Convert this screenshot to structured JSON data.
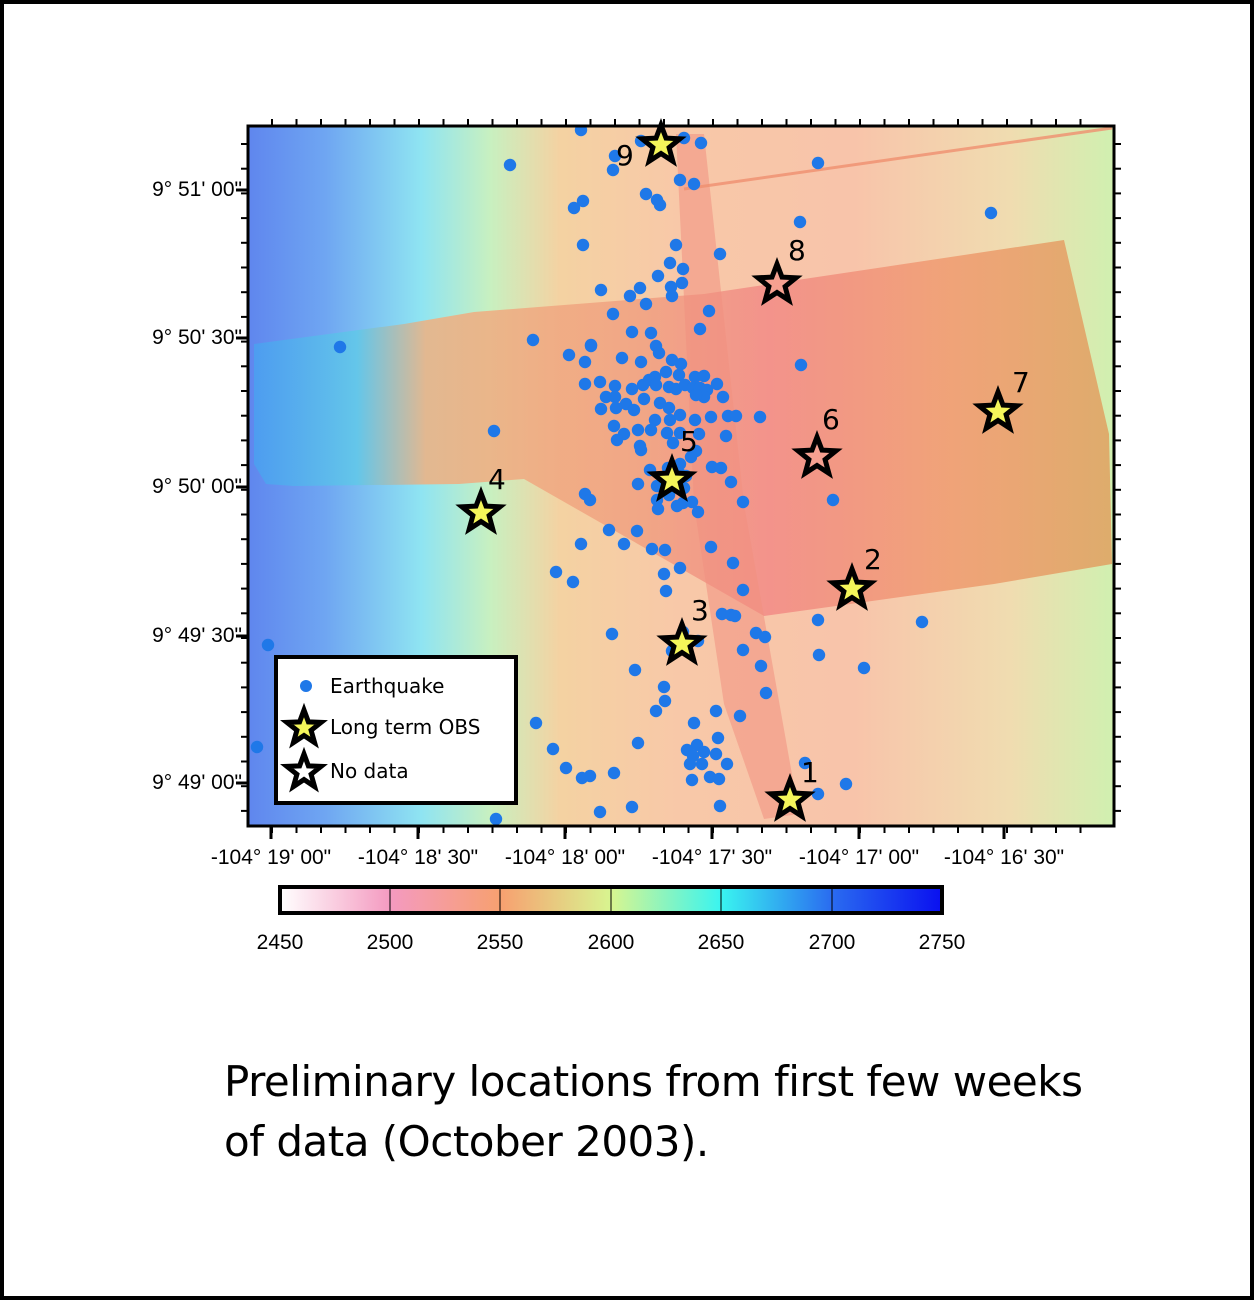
{
  "caption": {
    "line1": "Preliminary locations from first few weeks",
    "line2": "of data (October 2003)."
  },
  "map": {
    "x_ticks": [
      "-104° 19' 00\"",
      "-104° 18' 30\"",
      "-104° 18' 00\"",
      "-104° 17' 30\"",
      "-104° 17' 00\"",
      "-104° 16' 30\""
    ],
    "y_ticks": [
      "9° 51' 00\"",
      "9° 50' 30\"",
      "9° 50' 00\"",
      "9° 49' 30\"",
      "9° 49' 00\""
    ],
    "x_minor_ticks": [
      "-104° 18' 45\"",
      "-104° 18' 15\"",
      "-104° 17' 45\"",
      "-104° 17' 15\"",
      "-104° 16' 45\""
    ],
    "colors": {
      "earthquake": "#1f78e8",
      "obs_star_fill": "#f4f55a",
      "no_data_star_fill": "#f6a090",
      "star_outline": "#000000"
    }
  },
  "stations": [
    {
      "id": "1",
      "label": "1",
      "type": "long_term"
    },
    {
      "id": "2",
      "label": "2",
      "type": "long_term"
    },
    {
      "id": "3",
      "label": "3",
      "type": "long_term"
    },
    {
      "id": "4",
      "label": "4",
      "type": "long_term"
    },
    {
      "id": "5",
      "label": "5",
      "type": "long_term"
    },
    {
      "id": "6",
      "label": "6",
      "type": "no_data"
    },
    {
      "id": "7",
      "label": "7",
      "type": "long_term"
    },
    {
      "id": "8",
      "label": "8",
      "type": "no_data"
    },
    {
      "id": "9",
      "label": "9",
      "type": "long_term"
    }
  ],
  "legend": {
    "earthquake": "Earthquake",
    "long_term_obs": "Long term OBS",
    "no_data": "No data"
  },
  "colorbar": {
    "ticks": [
      "2450",
      "2500",
      "2550",
      "2600",
      "2650",
      "2700",
      "2750"
    ],
    "stops": [
      "#ffffff",
      "#f49ac0",
      "#f7a070",
      "#d8f590",
      "#39f4f0",
      "#2a6cf0",
      "#0a10f0"
    ]
  }
}
